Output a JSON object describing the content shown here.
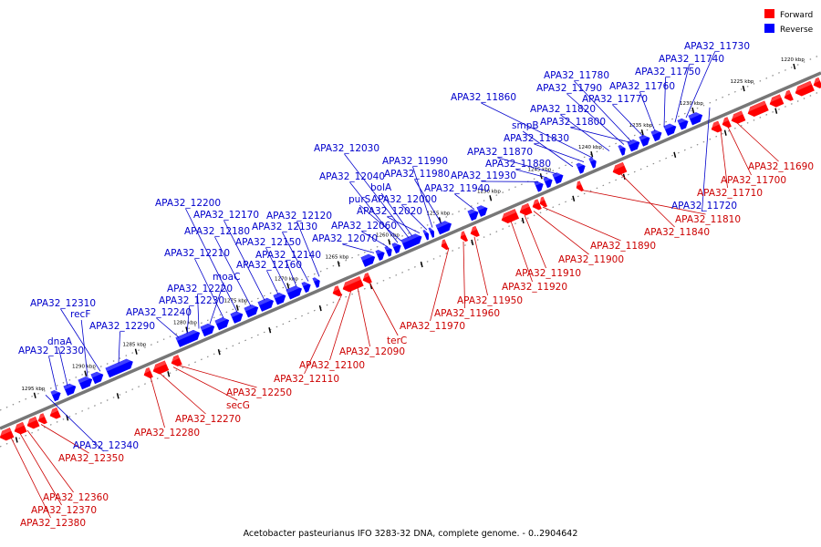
{
  "legend": {
    "forward": {
      "label": "Forward",
      "color": "#ff0000"
    },
    "reverse": {
      "label": "Reverse",
      "color": "#0000ff"
    }
  },
  "caption": "Acetobacter pasteurianus IFO 3283-32 DNA, complete genome. - 0..2904642",
  "chart_data": {
    "type": "genome-map",
    "tick_labels": [
      "1220 kbp",
      "1225 kbp",
      "1230 kbp",
      "1235 kbp",
      "1240 kbp",
      "1245 kbp",
      "1250 kbp",
      "1255 kbp",
      "1260 kbp",
      "1265 kbp",
      "1270 kbp",
      "1275 kbp",
      "1280 kbp",
      "1285 kbp",
      "1290 kbp",
      "1295 kbp"
    ],
    "reverse_genes": [
      "APA32_11730",
      "APA32_11740",
      "APA32_11750",
      "APA32_11760",
      "APA32_11770",
      "APA32_11780",
      "APA32_11790",
      "APA32_11800",
      "APA32_11820",
      "APA32_11830",
      "smpB",
      "APA32_11860",
      "APA32_11870",
      "APA32_11880",
      "APA32_11930",
      "APA32_11940",
      "APA32_11980",
      "APA32_11990",
      "APA32_12000",
      "APA32_12020",
      "APA32_12030",
      "APA32_12040",
      "bolA",
      "purS",
      "APA32_12060",
      "APA32_12070",
      "APA32_12120",
      "APA32_12130",
      "APA32_12140",
      "APA32_12150",
      "APA32_12160",
      "APA32_12170",
      "APA32_12180",
      "APA32_12200",
      "APA32_12210",
      "moaC",
      "APA32_12220",
      "APA32_12230",
      "APA32_12240",
      "APA32_12290",
      "APA32_12310",
      "recF",
      "dnaA",
      "APA32_12330",
      "APA32_11720",
      "APA32_12340"
    ],
    "forward_genes": [
      "APA32_11690",
      "APA32_11700",
      "APA32_11710",
      "APA32_11810",
      "APA32_11840",
      "APA32_11890",
      "APA32_11900",
      "APA32_11910",
      "APA32_11920",
      "APA32_11950",
      "APA32_11960",
      "APA32_11970",
      "terC",
      "APA32_12090",
      "APA32_12100",
      "APA32_12110",
      "APA32_12250",
      "secG",
      "APA32_12270",
      "APA32_12280",
      "APA32_12350",
      "APA32_12360",
      "APA32_12370",
      "APA32_12380"
    ]
  }
}
